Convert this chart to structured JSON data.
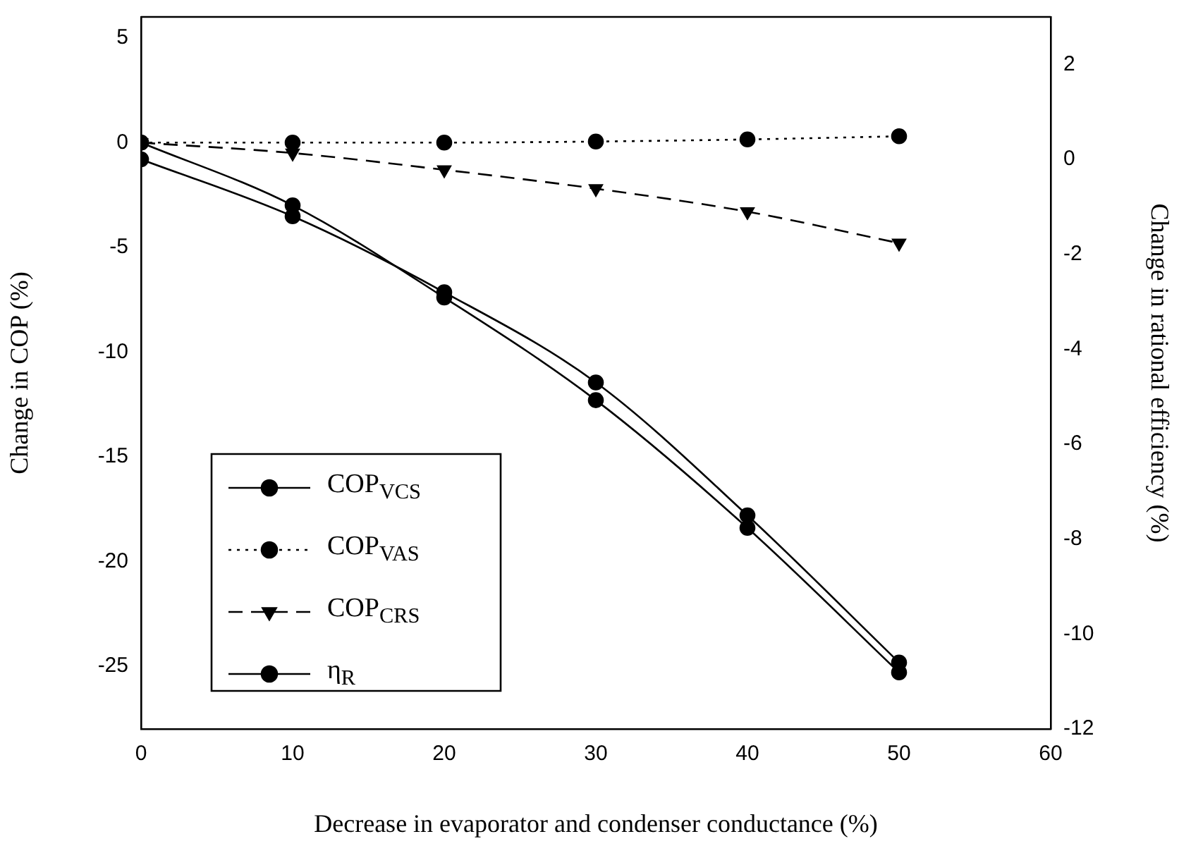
{
  "chart_data": {
    "type": "line",
    "xlabel": "Decrease in evaporator and condenser conductance (%)",
    "ylabel": "Change in COP (%)",
    "y2label": "Change in rational efficiency (%)",
    "x": [
      0,
      10,
      20,
      30,
      40,
      50
    ],
    "series": [
      {
        "name": "COP$_{VCS}$",
        "color": "#000000",
        "marker": "circle",
        "line_style": "solid",
        "values": [
          0,
          -3.0,
          -7.4,
          -12.3,
          -18.4,
          -25.3
        ]
      },
      {
        "name": "COP$_{VAS}$",
        "color": "#000000",
        "marker": "circle",
        "line_style": "dotted",
        "values": [
          0,
          0,
          0,
          0.05,
          0.15,
          0.3
        ]
      },
      {
        "name": "COP$_{CRS}$",
        "color": "#000000",
        "marker": "triangle",
        "line_style": "dashed",
        "values": [
          0,
          -0.5,
          -1.3,
          -2.2,
          -3.3,
          -4.8
        ]
      },
      {
        "name": "η$_{R}$",
        "color": "#000000",
        "marker": "circle",
        "line_style": "solid",
        "axis": "y2",
        "values": [
          0,
          -1.2,
          -2.8,
          -4.7,
          -7.5,
          -10.6
        ]
      }
    ],
    "xlim": [
      0,
      60
    ],
    "xticks": [
      0,
      10,
      20,
      30,
      40,
      50,
      60
    ],
    "ylim": [
      -28,
      6
    ],
    "yticks": [
      -25,
      -20,
      -15,
      -10,
      -5,
      0,
      5
    ],
    "y2lim": [
      -12,
      3
    ],
    "y2ticks": [
      -12,
      -10,
      -8,
      -6,
      -4,
      -2,
      0,
      2
    ],
    "grid": false,
    "legend": "bottom left"
  }
}
